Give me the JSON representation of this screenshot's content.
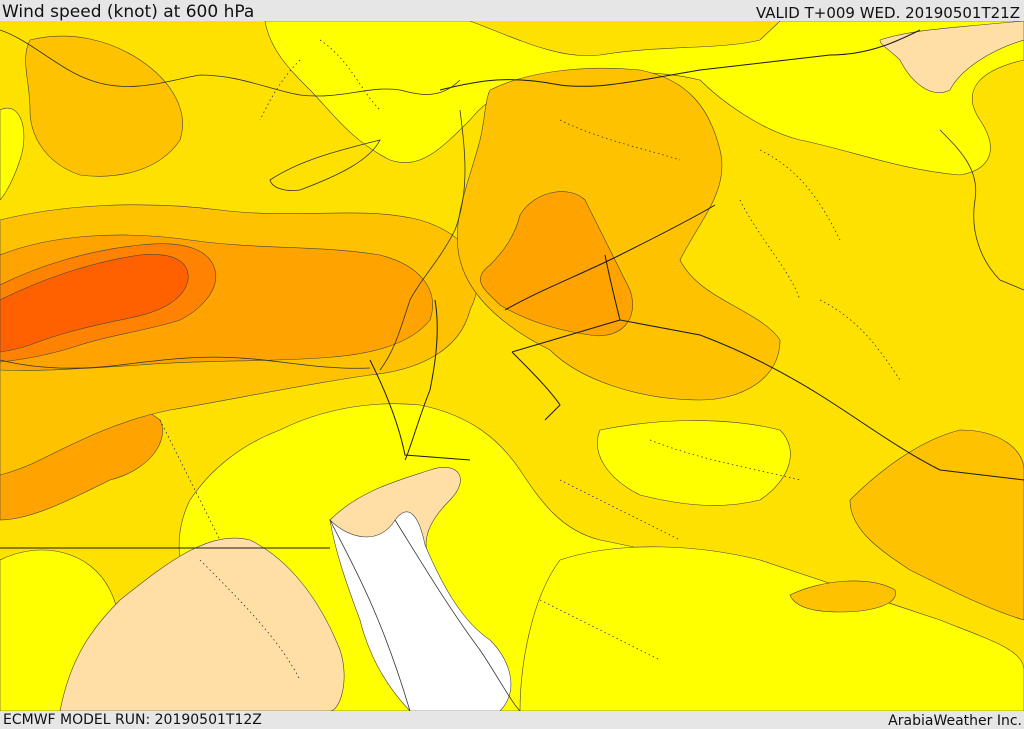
{
  "header": {
    "title": "Wind speed (knot) at 600 hPa",
    "valid": "VALID T+009 WED. 20190501T21Z"
  },
  "footer": {
    "model_run": "ECMWF MODEL RUN: 20190501T12Z",
    "credit": "ArabiaWeather Inc."
  },
  "palette": {
    "bin_lowest": "#ffffff",
    "bin_low": "#ffdfa6",
    "bin_1": "#ffff00",
    "bin_2": "#ffe100",
    "bin_3": "#ffc200",
    "bin_4": "#ffa300",
    "bin_5": "#ff8200",
    "bin_6": "#ff6100",
    "border_line": "#1a1a1a",
    "frame": "#e6e6e6"
  }
}
